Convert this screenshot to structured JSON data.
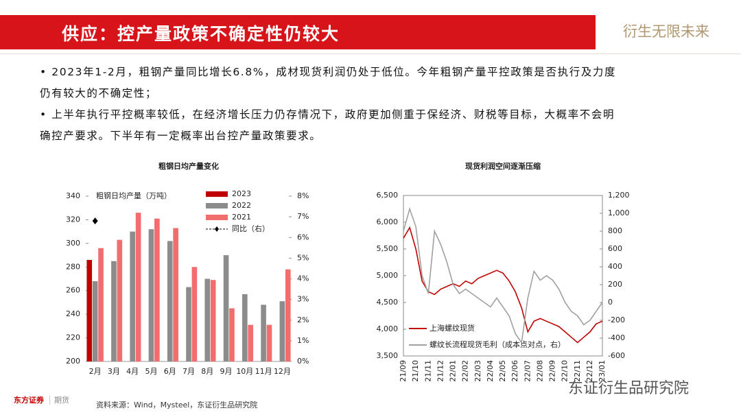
{
  "header": {
    "title": "供应：控产量政策不确定性仍较大",
    "slogan": "衍生无限未来"
  },
  "bullets": [
    "2023年1-2月，粗钢产量同比增长6.8%，成材现货利润仍处于低位。今年粗钢产量平控政策是否执行及力度仍有较大的不确定性；",
    "上半年执行平控概率较低，在经济增长压力仍存情况下，政府更加侧重于保经济、财税等目标，大概率不会明确控产要求。下半年有一定概率出台控产量政策要求。"
  ],
  "chart_data": [
    {
      "type": "bar",
      "title": "粗钢日均产量变化",
      "ylabel": "粗钢日均产量（万吨）",
      "categories": [
        "2月",
        "3月",
        "4月",
        "5月",
        "6月",
        "7月",
        "8月",
        "9月",
        "10月",
        "11月",
        "12月"
      ],
      "series": [
        {
          "name": "2023",
          "color": "#c00000",
          "values": [
            286,
            null,
            null,
            null,
            null,
            null,
            null,
            null,
            null,
            null,
            null
          ]
        },
        {
          "name": "2022",
          "color": "#8c8c8c",
          "values": [
            268,
            285,
            310,
            312,
            302,
            263,
            270,
            290,
            257,
            248,
            251
          ]
        },
        {
          "name": "2021",
          "color": "#f26d6d",
          "values": [
            296,
            303,
            326,
            321,
            313,
            280,
            269,
            245,
            231,
            231,
            278
          ]
        },
        {
          "name": "同比（右）",
          "color": "#000000",
          "type": "line",
          "axis": "y2",
          "values": [
            6.8,
            null,
            null,
            null,
            null,
            null,
            null,
            null,
            null,
            null,
            null
          ]
        }
      ],
      "ylim": [
        200,
        340
      ],
      "yticks": [
        200,
        220,
        240,
        260,
        280,
        300,
        320,
        340
      ],
      "y2lim": [
        0,
        8
      ],
      "y2ticks": [
        {
          "value": 0,
          "label": "0%"
        },
        {
          "value": 1,
          "label": "1%"
        },
        {
          "value": 2,
          "label": "2%"
        },
        {
          "value": 3,
          "label": "3%"
        },
        {
          "value": 4,
          "label": "4%"
        },
        {
          "value": 5,
          "label": "5%"
        },
        {
          "value": 6,
          "label": "6%"
        },
        {
          "value": 7,
          "label": "7%"
        },
        {
          "value": 8,
          "label": "8%"
        }
      ],
      "legend": "upper right"
    },
    {
      "type": "line",
      "title": "现货利润空间逐渐压缩",
      "categories": [
        "21/09",
        null,
        "21/10",
        null,
        "21/11",
        null,
        "21/12",
        null,
        "22/01",
        null,
        "22/02",
        null,
        "22/03",
        null,
        "22/04",
        null,
        "22/05",
        null,
        "22/06",
        null,
        "22/07",
        null,
        "22/08",
        null,
        "22/09",
        null,
        "22/10",
        null,
        "22/11",
        null,
        "22/12",
        null,
        "23/01"
      ],
      "series": [
        {
          "name": "上海螺纹现货",
          "color": "#c00000",
          "values": [
            5700,
            5900,
            5500,
            4900,
            4700,
            4650,
            4750,
            4800,
            4850,
            4800,
            4900,
            4850,
            4950,
            5000,
            5050,
            5100,
            5050,
            4900,
            4700,
            4400,
            3950,
            4150,
            4200,
            4150,
            4100,
            4050,
            3950,
            3850,
            3750,
            3850,
            3950,
            4100,
            4150
          ]
        },
        {
          "name": "螺纹长流程现货毛利（成本点对点，右）",
          "color": "#a0a0a0",
          "axis": "y2",
          "values": [
            800,
            1050,
            850,
            300,
            100,
            800,
            650,
            450,
            200,
            100,
            150,
            100,
            50,
            0,
            -50,
            50,
            -50,
            -150,
            -350,
            -450,
            50,
            350,
            250,
            300,
            250,
            150,
            0,
            -100,
            -150,
            -250,
            -200,
            -100,
            0
          ]
        }
      ],
      "ylim": [
        3500,
        6500
      ],
      "yticks": [
        {
          "value": 3500,
          "label": "3,500"
        },
        {
          "value": 4000,
          "label": "4,000"
        },
        {
          "value": 4500,
          "label": "4,500"
        },
        {
          "value": 5000,
          "label": "5,000"
        },
        {
          "value": 5500,
          "label": "5,500"
        },
        {
          "value": 6000,
          "label": "6,000"
        },
        {
          "value": 6500,
          "label": "6,500"
        }
      ],
      "y2lim": [
        -600,
        1200
      ],
      "y2ticks": [
        -600,
        -400,
        -200,
        0,
        200,
        400,
        600,
        800,
        {
          "value": 1000,
          "label": "1,000"
        },
        {
          "value": 1200,
          "label": "1,200"
        }
      ],
      "legend": "lower left"
    }
  ],
  "source": "资料来源：Wind，Mysteel，东证衍生品研究院",
  "logo": {
    "name": "东方证券",
    "division": "期货"
  },
  "watermark": "东证衍生品研究院"
}
